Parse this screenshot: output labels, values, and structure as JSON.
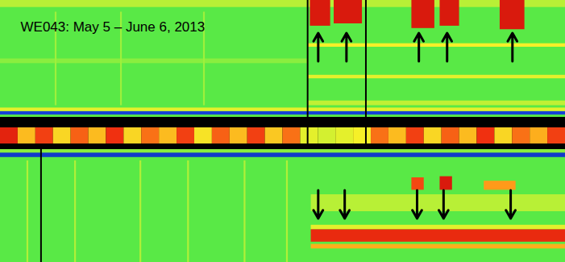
{
  "chart_data": {
    "type": "heatmap",
    "title": "WE043: May 5 – June 6, 2013",
    "xlim": [
      0,
      32
    ],
    "tick_labels": false,
    "value_range": [
      0,
      1
    ],
    "upper": {
      "ylim": [
        0,
        1
      ],
      "background": 0.45,
      "cells": [
        [
          0,
          32,
          0.02,
          0.05,
          0.08
        ],
        [
          0,
          32,
          0.05,
          0.08,
          0.6
        ],
        [
          0,
          32,
          0.94,
          1,
          0.55
        ],
        [
          0,
          17.4,
          0.46,
          0.5,
          0.5
        ],
        [
          3.1,
          3.2,
          0.1,
          0.9,
          0.52
        ],
        [
          6.8,
          6.9,
          0.1,
          0.9,
          0.52
        ],
        [
          11.5,
          11.6,
          0.1,
          0.9,
          0.52
        ],
        [
          17.4,
          32,
          0.6,
          0.63,
          0.62
        ],
        [
          17.4,
          32,
          0.33,
          0.36,
          0.6
        ],
        [
          17.4,
          32,
          0.1,
          0.14,
          0.56
        ],
        [
          17.55,
          18.7,
          0.78,
          1,
          0.95
        ],
        [
          18.9,
          20.5,
          0.8,
          1,
          0.95
        ],
        [
          23.3,
          24.6,
          0.76,
          1,
          0.95
        ],
        [
          24.9,
          26.0,
          0.78,
          1,
          0.95
        ],
        [
          28.3,
          29.7,
          0.75,
          1,
          0.95
        ]
      ],
      "vertical_lines": [
        17.4,
        20.7
      ],
      "arrows": [
        18.0,
        19.6,
        23.7,
        25.3,
        29.0
      ],
      "arrow_direction": "up"
    },
    "strip": {
      "values": [
        0.92,
        0.7,
        0.86,
        0.66,
        0.82,
        0.7,
        0.88,
        0.66,
        0.8,
        0.7,
        0.86,
        0.64,
        0.82,
        0.7,
        0.86,
        0.68,
        0.8,
        0.6,
        0.58,
        0.6,
        0.62,
        0.8,
        0.7,
        0.86,
        0.66,
        0.82,
        0.7,
        0.88,
        0.66,
        0.8,
        0.72,
        0.86
      ],
      "vertical_lines": [
        17.4,
        20.7
      ]
    },
    "lower": {
      "ylim": [
        0,
        1
      ],
      "background": 0.45,
      "cells": [
        [
          0,
          32,
          0.93,
          0.97,
          0.06
        ],
        [
          0,
          32,
          0.97,
          1,
          0.5
        ],
        [
          1.5,
          1.6,
          0,
          0.9,
          0.54
        ],
        [
          4.2,
          4.3,
          0,
          0.9,
          0.54
        ],
        [
          7.9,
          8.0,
          0,
          0.9,
          0.54
        ],
        [
          10.6,
          10.7,
          0,
          0.9,
          0.54
        ],
        [
          13.8,
          13.9,
          0,
          0.9,
          0.54
        ],
        [
          16.2,
          16.3,
          0,
          0.9,
          0.54
        ],
        [
          17.6,
          32,
          0.45,
          0.6,
          0.55
        ],
        [
          17.6,
          32,
          0.29,
          0.33,
          0.6
        ],
        [
          17.6,
          32,
          0.18,
          0.29,
          0.9
        ],
        [
          17.6,
          32,
          0.12,
          0.16,
          0.72
        ],
        [
          23.3,
          24.0,
          0.64,
          0.75,
          0.85
        ],
        [
          24.9,
          25.6,
          0.64,
          0.76,
          0.95
        ],
        [
          27.4,
          29.2,
          0.64,
          0.72,
          0.75
        ]
      ],
      "vertical_lines": [
        2.3
      ],
      "arrows": [
        18.0,
        19.5,
        23.6,
        25.1,
        28.9
      ],
      "arrow_direction": "down"
    }
  }
}
